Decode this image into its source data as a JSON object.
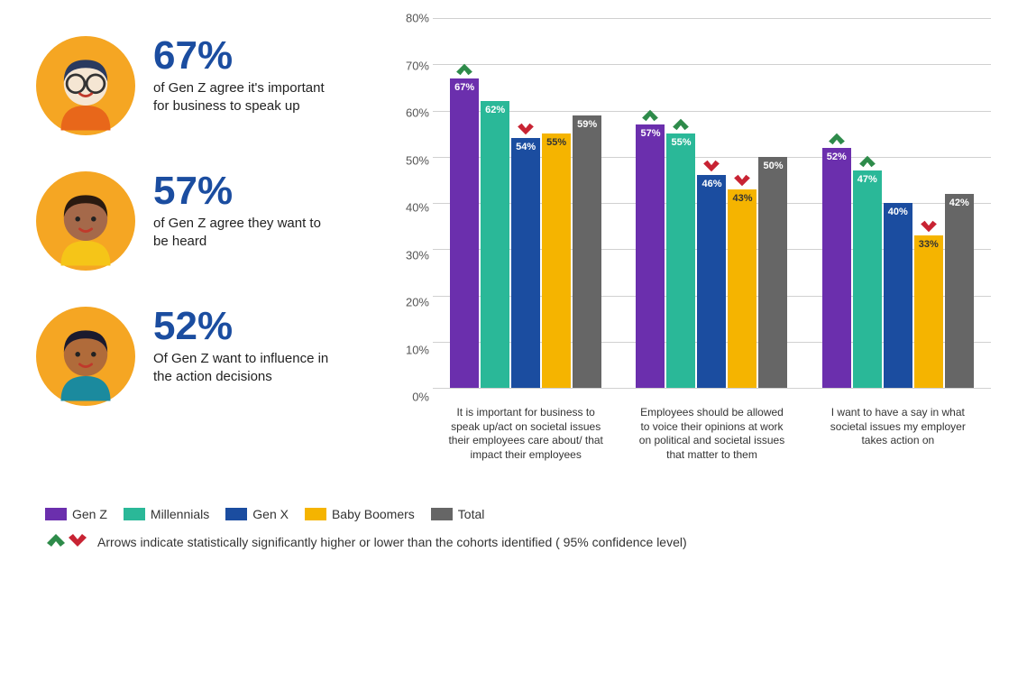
{
  "colors": {
    "genz": "#6b2fad",
    "millennials": "#2ab898",
    "genx": "#1b4da0",
    "boomers": "#f5b400",
    "total": "#666666",
    "avatar_bg": "#f5a623",
    "arrow_up": "#2e8b4a",
    "arrow_down": "#c82333",
    "gridline": "#d0d0d0",
    "pct_text": "#1b4da0"
  },
  "left_stats": [
    {
      "pct": "67%",
      "desc": "of Gen Z agree it's important for business to speak up",
      "avatar": {
        "skin": "#f5e6d3",
        "hair": "#2a3a5f",
        "shirt": "#e8671a",
        "glasses": true
      }
    },
    {
      "pct": "57%",
      "desc": "of Gen Z agree they want to be heard",
      "avatar": {
        "skin": "#a5694a",
        "hair": "#2a1a10",
        "shirt": "#f5c518",
        "glasses": false
      }
    },
    {
      "pct": "52%",
      "desc": "Of Gen Z want to influence in the action decisions",
      "avatar": {
        "skin": "#b06b3a",
        "hair": "#1a1a2e",
        "shirt": "#1b8a9e",
        "glasses": false
      }
    }
  ],
  "chart": {
    "ylim": [
      0,
      80
    ],
    "ytick_step": 10,
    "yticks": [
      "0%",
      "10%",
      "20%",
      "30%",
      "40%",
      "50%",
      "60%",
      "70%",
      "80%"
    ],
    "series": [
      {
        "key": "genz",
        "label": "Gen Z"
      },
      {
        "key": "millennials",
        "label": "Millennials"
      },
      {
        "key": "genx",
        "label": "Gen X"
      },
      {
        "key": "boomers",
        "label": "Baby Boomers"
      },
      {
        "key": "total",
        "label": "Total"
      }
    ],
    "groups": [
      {
        "label": "It is important for business to speak up/act on societal issues their employees care about/ that impact their employees",
        "bars": [
          {
            "series": "genz",
            "value": 67,
            "label": "67%",
            "arrow": "up"
          },
          {
            "series": "millennials",
            "value": 62,
            "label": "62%",
            "arrow": null
          },
          {
            "series": "genx",
            "value": 54,
            "label": "54%",
            "arrow": "down"
          },
          {
            "series": "boomers",
            "value": 55,
            "label": "55%",
            "arrow": null
          },
          {
            "series": "total",
            "value": 59,
            "label": "59%",
            "arrow": null
          }
        ]
      },
      {
        "label": "Employees should be allowed to voice their opinions at work on political and societal issues that matter to them",
        "bars": [
          {
            "series": "genz",
            "value": 57,
            "label": "57%",
            "arrow": "up"
          },
          {
            "series": "millennials",
            "value": 55,
            "label": "55%",
            "arrow": "up"
          },
          {
            "series": "genx",
            "value": 46,
            "label": "46%",
            "arrow": "down"
          },
          {
            "series": "boomers",
            "value": 43,
            "label": "43%",
            "arrow": "down"
          },
          {
            "series": "total",
            "value": 50,
            "label": "50%",
            "arrow": null
          }
        ]
      },
      {
        "label": "I want to have a say in what societal issues my employer takes action on",
        "bars": [
          {
            "series": "genz",
            "value": 52,
            "label": "52%",
            "arrow": "up"
          },
          {
            "series": "millennials",
            "value": 47,
            "label": "47%",
            "arrow": "up"
          },
          {
            "series": "genx",
            "value": 40,
            "label": "40%",
            "arrow": null
          },
          {
            "series": "boomers",
            "value": 33,
            "label": "33%",
            "arrow": "down"
          },
          {
            "series": "total",
            "value": 42,
            "label": "42%",
            "arrow": null
          }
        ]
      }
    ]
  },
  "footnote": "Arrows indicate statistically significantly higher or lower than the cohorts identified ( 95% confidence level)"
}
